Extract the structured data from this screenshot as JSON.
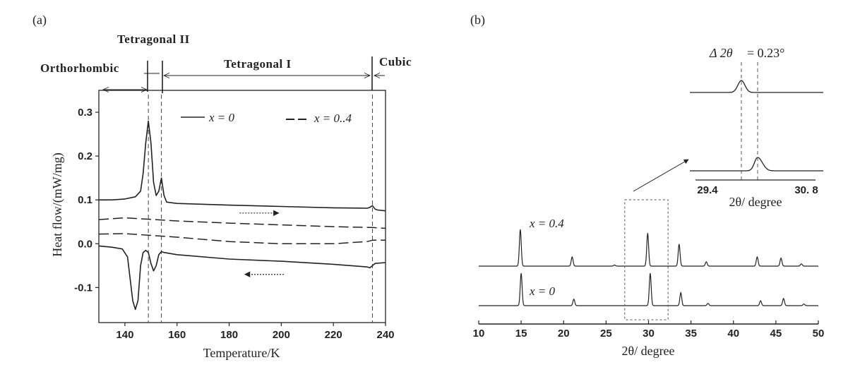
{
  "chart_data": [
    {
      "panel_label": "(a)",
      "type": "line",
      "xlabel": "Temperature/K",
      "ylabel": "Heat flow/(mW/mg)",
      "xlim": [
        130,
        240
      ],
      "ylim": [
        -0.18,
        0.35
      ],
      "xticks": [
        140,
        160,
        180,
        200,
        220,
        240
      ],
      "yticks": [
        -0.1,
        0.0,
        0.1,
        0.2,
        0.3
      ],
      "ytick_labels": [
        "-0.1",
        "0.0",
        "0.1",
        "0.2",
        "0.3"
      ],
      "phases": [
        "Orthorhombic",
        "Tetragonal II",
        "Tetragonal I",
        "Cubic"
      ],
      "transition_temperatures": [
        149,
        154,
        235
      ],
      "legend": {
        "position": "top",
        "entries": [
          {
            "label": "x = 0",
            "style": "solid"
          },
          {
            "label": "x = 0..4",
            "style": "dashed"
          }
        ]
      },
      "series": [
        {
          "label_ref": 0,
          "style": "solid",
          "x": [
            130,
            135,
            140,
            144,
            146,
            147,
            148,
            149,
            150,
            151,
            152,
            153,
            154,
            155,
            156,
            160,
            180,
            200,
            220,
            233,
            234,
            235,
            236,
            237,
            240
          ],
          "values": [
            0.1,
            0.1,
            0.102,
            0.107,
            0.12,
            0.16,
            0.23,
            0.28,
            0.23,
            0.14,
            0.11,
            0.12,
            0.15,
            0.11,
            0.095,
            0.092,
            0.088,
            0.085,
            0.082,
            0.081,
            0.083,
            0.087,
            0.079,
            0.077,
            0.075
          ]
        },
        {
          "label_ref": 1,
          "style": "dashed",
          "x": [
            130,
            140,
            160,
            180,
            200,
            220,
            235,
            240
          ],
          "values": [
            0.055,
            0.059,
            0.052,
            0.047,
            0.043,
            0.039,
            0.037,
            0.035
          ]
        },
        {
          "label_ref": 1,
          "style": "dashed",
          "x": [
            130,
            140,
            160,
            180,
            200,
            220,
            233,
            235,
            240
          ],
          "values": [
            0.022,
            0.023,
            0.015,
            0.005,
            0.0,
            0.0,
            0.005,
            0.008,
            0.008
          ]
        },
        {
          "label_ref": 0,
          "style": "solid",
          "x": [
            130,
            135,
            139,
            141,
            142,
            143,
            144,
            145,
            146,
            147,
            148,
            149,
            150,
            151,
            152,
            153,
            154,
            155,
            157,
            160,
            180,
            200,
            220,
            233,
            234,
            235,
            236,
            240
          ],
          "values": [
            -0.005,
            -0.008,
            -0.012,
            -0.03,
            -0.08,
            -0.13,
            -0.15,
            -0.13,
            -0.05,
            -0.02,
            -0.015,
            -0.02,
            -0.045,
            -0.062,
            -0.05,
            -0.025,
            -0.018,
            -0.02,
            -0.022,
            -0.025,
            -0.035,
            -0.04,
            -0.047,
            -0.053,
            -0.055,
            -0.05,
            -0.045,
            -0.043
          ]
        }
      ],
      "arrows": [
        {
          "direction": "right",
          "x": [
            184,
            199
          ],
          "y": 0.07
        },
        {
          "direction": "left",
          "x": [
            186,
            201
          ],
          "y": -0.07
        }
      ]
    },
    {
      "panel_label": "(b)",
      "type": "line",
      "xlabel": "2θ/ degree",
      "xlim": [
        10,
        50
      ],
      "xticks": [
        10,
        15,
        20,
        25,
        30,
        35,
        40,
        45,
        50
      ],
      "series": [
        {
          "label": "x = 0.4",
          "peaks": [
            [
              14.9,
              1.0
            ],
            [
              21.0,
              0.25
            ],
            [
              26.0,
              0.03
            ],
            [
              29.9,
              0.9
            ],
            [
              33.6,
              0.6
            ],
            [
              36.8,
              0.12
            ],
            [
              42.8,
              0.25
            ],
            [
              45.6,
              0.22
            ],
            [
              48.0,
              0.06
            ]
          ]
        },
        {
          "label": "x = 0",
          "peaks": [
            [
              15.0,
              1.0
            ],
            [
              21.2,
              0.2
            ],
            [
              30.2,
              1.0
            ],
            [
              33.8,
              0.4
            ],
            [
              37.0,
              0.07
            ],
            [
              43.2,
              0.15
            ],
            [
              45.9,
              0.22
            ],
            [
              48.3,
              0.05
            ]
          ]
        }
      ],
      "inset": {
        "xlabel": "2θ/ degree",
        "xlim": [
          29.4,
          30.8
        ],
        "xtick_labels": [
          "29.4",
          "30. 8"
        ],
        "annotation_prefix": "Δ 2θ",
        "annotation_value": "= 0.23°",
        "reference_lines": [
          29.88,
          30.11
        ],
        "zoom_box_x": [
          27.2,
          32.3
        ],
        "series": [
          {
            "peak_x": 29.88,
            "height": 1.0,
            "width": 0.05
          },
          {
            "peak_x": 30.11,
            "height": 1.0,
            "width": 0.045
          }
        ]
      }
    }
  ]
}
